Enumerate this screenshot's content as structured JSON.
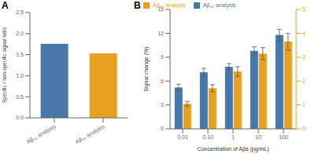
{
  "chart_data": [
    {
      "type": "bar",
      "title": "A",
      "categories": [
        "Aβ₄₂ analysis",
        "Aβ₄₀ analysis"
      ],
      "values": [
        1.76,
        1.53
      ],
      "colors": [
        "#4878a8",
        "#e8a020"
      ],
      "ylabel": "Specific / non-specific signal ratio",
      "ylim": [
        0,
        2.5
      ],
      "yticks": [
        {
          "value": 0,
          "label": "0.0"
        },
        0.5,
        {
          "value": 1,
          "label": "1.0"
        },
        1.5,
        {
          "value": 2,
          "label": "2.0"
        },
        2.5
      ],
      "grid": false
    },
    {
      "type": "bar",
      "title": "B",
      "categories": [
        "0.01",
        "0.10",
        "1",
        "10",
        "100"
      ],
      "xlabel": "Concentration of Aβs (pg/mL)",
      "ylabel": "Signal change (%)",
      "ylim": [
        0,
        15
      ],
      "yticks": [
        0,
        3,
        6,
        9,
        12,
        15
      ],
      "y2lim": [
        0,
        5
      ],
      "y2ticks": [
        0,
        1,
        2,
        3,
        4,
        5
      ],
      "legend": "upper left",
      "grid": false,
      "series": [
        {
          "name": "Aβ₄₂ analysis",
          "color": "#4878a8",
          "values": [
            5.2,
            7.1,
            7.8,
            9.8,
            11.8
          ],
          "errors": [
            0.4,
            0.5,
            0.4,
            0.5,
            0.7
          ]
        },
        {
          "name": "Aβ₄₀ analysis",
          "color": "#e8a020",
          "values": [
            1.05,
            1.7,
            2.4,
            3.15,
            3.65
          ],
          "errors": [
            0.1,
            0.15,
            0.2,
            0.25,
            0.35
          ],
          "axis": "y2"
        }
      ]
    }
  ]
}
